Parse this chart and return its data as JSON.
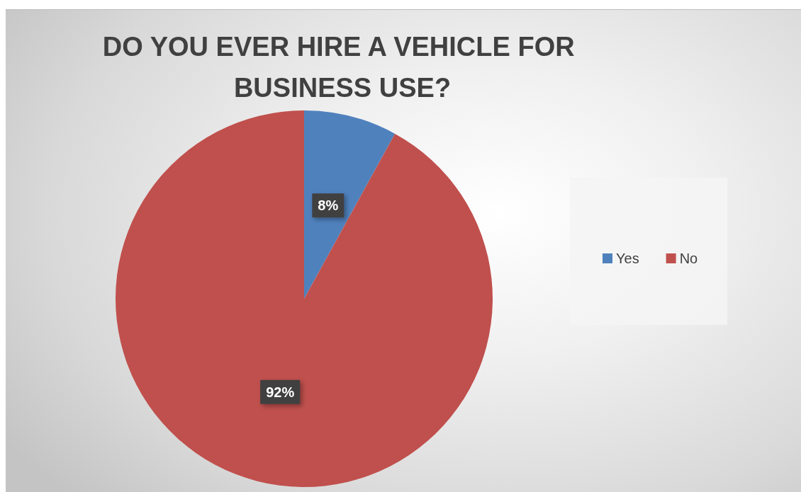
{
  "chart_data": {
    "type": "pie",
    "title": "DO YOU EVER HIRE A VEHICLE FOR BUSINESS USE?",
    "categories": [
      "Yes",
      "No"
    ],
    "values": [
      8,
      92
    ],
    "colors": [
      "#4f81bd",
      "#c0504d"
    ],
    "value_labels": [
      "8%",
      "92%"
    ],
    "legend": "right"
  }
}
